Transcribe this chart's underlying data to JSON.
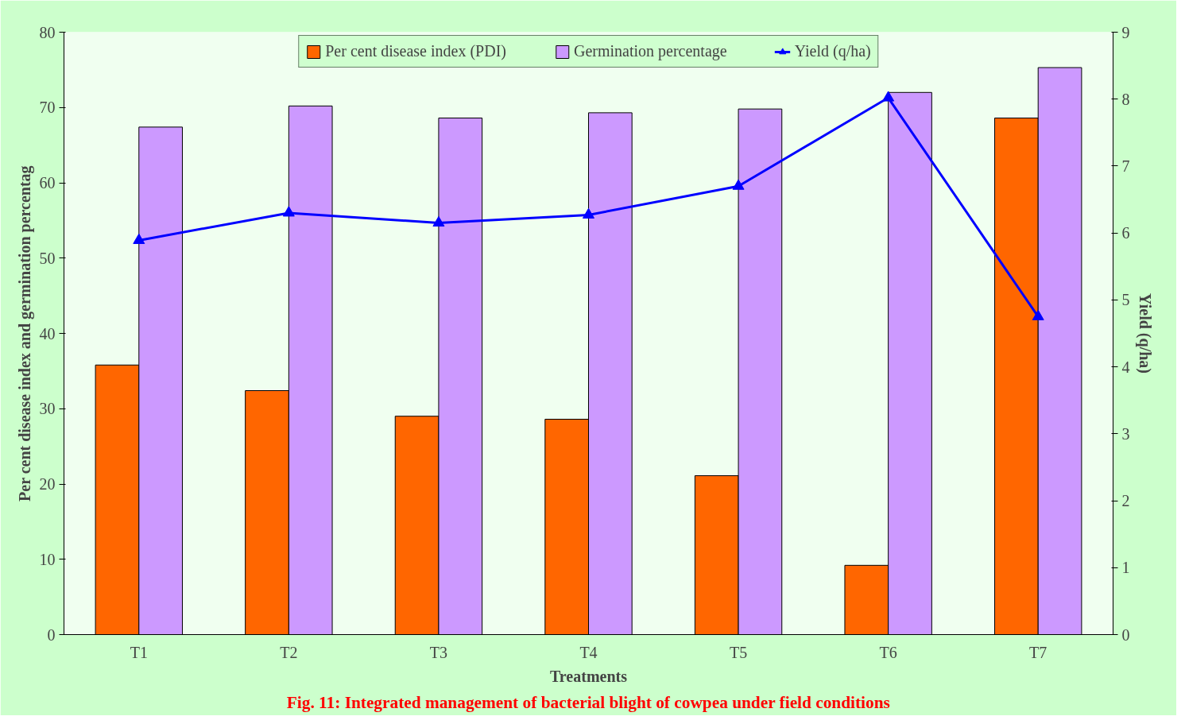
{
  "chart_data": {
    "type": "bar",
    "categories": [
      "T1",
      "T2",
      "T3",
      "T4",
      "T5",
      "T6",
      "T7"
    ],
    "xlabel": "Treatments",
    "ylabel": "Per cent disease index and germination percentag",
    "y2label": "Yield (q/ha)",
    "ylim": [
      0,
      80
    ],
    "yticks": [
      0,
      10,
      20,
      30,
      40,
      50,
      60,
      70,
      80
    ],
    "y2lim": [
      0,
      9
    ],
    "y2ticks": [
      0,
      1,
      2,
      3,
      4,
      5,
      6,
      7,
      8,
      9
    ],
    "series": [
      {
        "name": "Per cent disease index (PDI)",
        "color": "#ff6600",
        "values": [
          35.8,
          32.4,
          29.0,
          28.6,
          21.1,
          9.2,
          68.6
        ]
      },
      {
        "name": "Germination percentage",
        "color": "#cc99ff",
        "values": [
          67.4,
          70.2,
          68.6,
          69.3,
          69.8,
          72.0,
          75.3
        ]
      },
      {
        "name": "Yield (q/ha)",
        "type": "line",
        "axis": "y2",
        "color": "#0000ff",
        "marker": "triangle",
        "values": [
          5.89,
          6.3,
          6.15,
          6.27,
          6.7,
          8.02,
          4.75
        ]
      }
    ],
    "legend": "top",
    "grid": false,
    "annotations": [
      "Fig. 11: Integrated management of bacterial blight of cowpea under field conditions"
    ]
  }
}
